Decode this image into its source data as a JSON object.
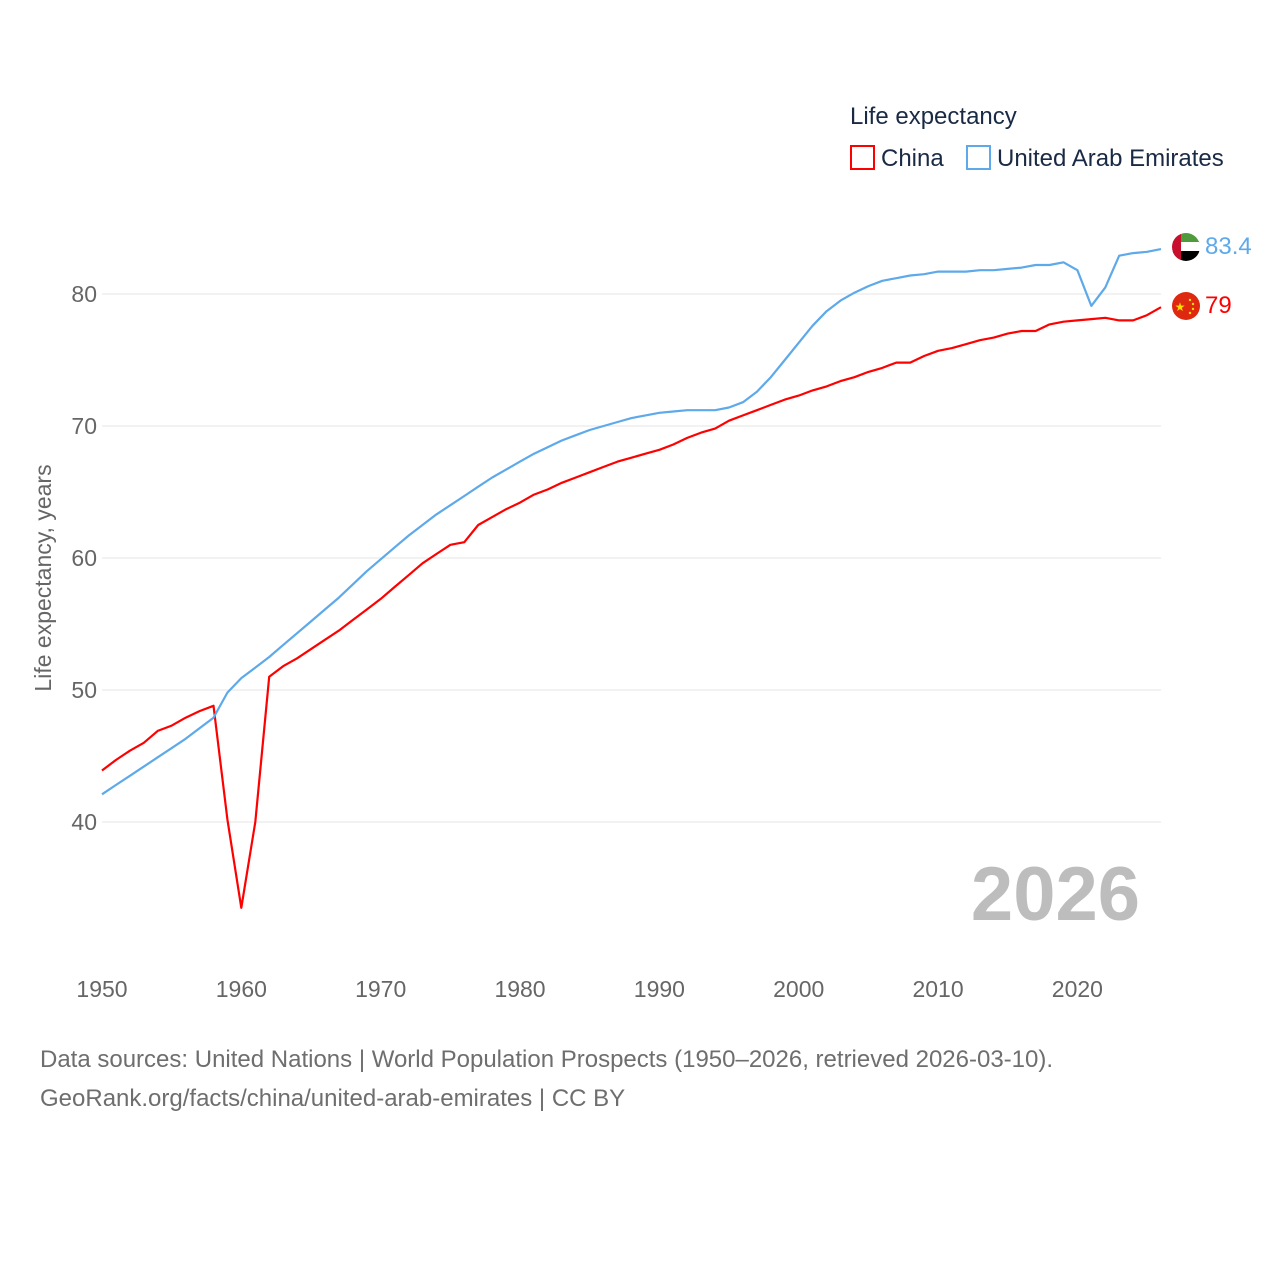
{
  "chart_data": {
    "type": "line",
    "title": "",
    "legend_title": "Life expectancy",
    "legend_position": "top-right",
    "ylabel": "Life expectancy, years",
    "xlabel": "",
    "xlim": [
      1950,
      2026
    ],
    "ylim": [
      30,
      88
    ],
    "grid": true,
    "x_ticks": [
      "1950",
      "1960",
      "1970",
      "1980",
      "1990",
      "2000",
      "2010",
      "2020"
    ],
    "y_ticks": [
      "40",
      "50",
      "60",
      "70",
      "80"
    ],
    "year_watermark": "2026",
    "x": [
      1950,
      1951,
      1952,
      1953,
      1954,
      1955,
      1956,
      1957,
      1958,
      1959,
      1960,
      1961,
      1962,
      1963,
      1964,
      1965,
      1966,
      1967,
      1968,
      1969,
      1970,
      1971,
      1972,
      1973,
      1974,
      1975,
      1976,
      1977,
      1978,
      1979,
      1980,
      1981,
      1982,
      1983,
      1984,
      1985,
      1986,
      1987,
      1988,
      1989,
      1990,
      1991,
      1992,
      1993,
      1994,
      1995,
      1996,
      1997,
      1998,
      1999,
      2000,
      2001,
      2002,
      2003,
      2004,
      2005,
      2006,
      2007,
      2008,
      2009,
      2010,
      2011,
      2012,
      2013,
      2014,
      2015,
      2016,
      2017,
      2018,
      2019,
      2020,
      2021,
      2022,
      2023,
      2024,
      2025,
      2026
    ],
    "series": [
      {
        "name": "China",
        "color": "#ff0000",
        "end_label": "79",
        "values": [
          43.9,
          44.7,
          45.4,
          46.0,
          46.9,
          47.3,
          47.9,
          48.4,
          48.8,
          40.2,
          33.5,
          40.0,
          51.0,
          51.8,
          52.4,
          53.1,
          53.8,
          54.5,
          55.3,
          56.1,
          56.9,
          57.8,
          58.7,
          59.6,
          60.3,
          61.0,
          61.2,
          62.5,
          63.1,
          63.7,
          64.2,
          64.8,
          65.2,
          65.7,
          66.1,
          66.5,
          66.9,
          67.3,
          67.6,
          67.9,
          68.2,
          68.6,
          69.1,
          69.5,
          69.8,
          70.4,
          70.8,
          71.2,
          71.6,
          72.0,
          72.3,
          72.7,
          73.0,
          73.4,
          73.7,
          74.1,
          74.4,
          74.8,
          74.8,
          75.3,
          75.7,
          75.9,
          76.2,
          76.5,
          76.7,
          77.0,
          77.2,
          77.2,
          77.7,
          77.9,
          78.0,
          78.1,
          78.2,
          78.0,
          78.0,
          78.4,
          79.0
        ]
      },
      {
        "name": "United Arab Emirates",
        "color": "#5da9ea",
        "end_label": "83.4",
        "values": [
          42.1,
          42.8,
          43.5,
          44.2,
          44.9,
          45.6,
          46.3,
          47.1,
          47.9,
          49.8,
          50.9,
          51.7,
          52.5,
          53.4,
          54.3,
          55.2,
          56.1,
          57.0,
          58.0,
          59.0,
          59.9,
          60.8,
          61.7,
          62.5,
          63.3,
          64.0,
          64.7,
          65.4,
          66.1,
          66.7,
          67.3,
          67.9,
          68.4,
          68.9,
          69.3,
          69.7,
          70.0,
          70.3,
          70.6,
          70.8,
          71.0,
          71.1,
          71.2,
          71.2,
          71.2,
          71.4,
          71.8,
          72.6,
          73.7,
          75.0,
          76.3,
          77.6,
          78.7,
          79.5,
          80.1,
          80.6,
          81.0,
          81.2,
          81.4,
          81.5,
          81.7,
          81.7,
          81.7,
          81.8,
          81.8,
          81.9,
          82.0,
          82.2,
          82.2,
          82.4,
          81.8,
          79.1,
          80.5,
          82.9,
          83.1,
          83.2,
          83.4
        ]
      }
    ]
  },
  "footer": {
    "line1": "Data sources: United Nations | World Population Prospects (1950–2026, retrieved 2026-03-10).",
    "line2": "GeoRank.org/facts/china/united-arab-emirates | CC BY"
  }
}
